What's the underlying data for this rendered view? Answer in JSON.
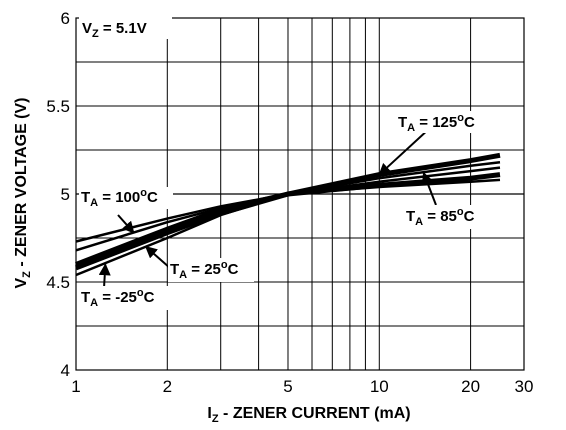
{
  "chart_data": {
    "type": "line",
    "xlabel_main": "I",
    "xlabel_sub": "Z",
    "xlabel_rest": " - ZENER CURRENT (mA)",
    "ylabel_main": "V",
    "ylabel_sub": "Z",
    "ylabel_rest": " - ZENER VOLTAGE (V)",
    "x_scale": "log",
    "xlim": [
      1,
      30
    ],
    "ylim": [
      4,
      6
    ],
    "x_ticks": [
      1,
      2,
      5,
      10,
      20,
      30
    ],
    "x_tick_labels": [
      "1",
      "2",
      "5",
      "10",
      "20",
      "30"
    ],
    "y_ticks": [
      4,
      4.5,
      5,
      5.5,
      6
    ],
    "y_tick_labels": [
      "4",
      "4.5",
      "5",
      "5.5",
      "6"
    ],
    "grid": true,
    "condition": {
      "main": "V",
      "sub": "Z",
      "rest": " = 5.1V"
    },
    "series": [
      {
        "name": "T_A = 125°C",
        "x": [
          1,
          2,
          3,
          5,
          10,
          20,
          25
        ],
        "y": [
          4.6,
          4.8,
          4.91,
          5.0,
          5.11,
          5.19,
          5.22
        ]
      },
      {
        "name": "T_A = 100°C",
        "x": [
          1,
          2,
          3,
          5,
          10,
          20,
          25
        ],
        "y": [
          4.73,
          4.86,
          4.93,
          5.0,
          5.07,
          5.13,
          5.15
        ]
      },
      {
        "name": "T_A = 85°C",
        "x": [
          1,
          2,
          3,
          5,
          10,
          20,
          25
        ],
        "y": [
          4.68,
          4.84,
          4.92,
          5.0,
          5.09,
          5.16,
          5.18
        ]
      },
      {
        "name": "T_A = 25°C",
        "x": [
          1,
          2,
          3,
          5,
          10,
          20,
          25
        ],
        "y": [
          4.58,
          4.78,
          4.89,
          5.0,
          5.05,
          5.09,
          5.11
        ]
      },
      {
        "name": "T_A = -25°C",
        "x": [
          1,
          2,
          3,
          5,
          10,
          20,
          25
        ],
        "y": [
          4.54,
          4.75,
          4.88,
          5.0,
          5.04,
          5.07,
          5.08
        ]
      }
    ],
    "labels": [
      {
        "main": "T",
        "sub": "A",
        "mid": " = 125",
        "sup": "o",
        "rest": "C"
      },
      {
        "main": "T",
        "sub": "A",
        "mid": " = 100",
        "sup": "o",
        "rest": "C"
      },
      {
        "main": "T",
        "sub": "A",
        "mid": " = 85",
        "sup": "o",
        "rest": "C"
      },
      {
        "main": "T",
        "sub": "A",
        "mid": " = 25",
        "sup": "o",
        "rest": "C"
      },
      {
        "main": "T",
        "sub": "A",
        "mid": " = -25",
        "sup": "o",
        "rest": "C"
      }
    ]
  }
}
